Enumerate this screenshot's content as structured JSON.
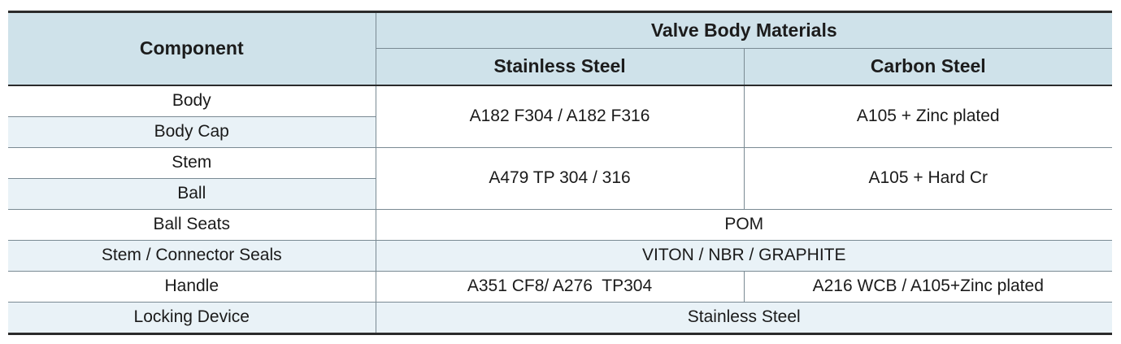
{
  "table": {
    "header": {
      "component": "Component",
      "materials": "Valve Body Materials",
      "stainless": "Stainless Steel",
      "carbon": "Carbon Steel"
    },
    "rows": {
      "body": "Body",
      "body_cap": "Body Cap",
      "body_group_ss": "A182 F304 / A182 F316",
      "body_group_cs": "A105 + Zinc plated",
      "stem": "Stem",
      "ball": "Ball",
      "stem_group_ss": "A479 TP 304 / 316",
      "stem_group_cs": "A105 + Hard Cr",
      "ball_seats": "Ball Seats",
      "ball_seats_value": "POM",
      "seals": "Stem / Connector Seals",
      "seals_value": "VITON / NBR / GRAPHITE",
      "handle": "Handle",
      "handle_ss": "A351 CF8/ A276  TP304",
      "handle_cs": "A216 WCB / A105+Zinc plated",
      "locking": "Locking Device",
      "locking_value": "Stainless Steel"
    }
  }
}
